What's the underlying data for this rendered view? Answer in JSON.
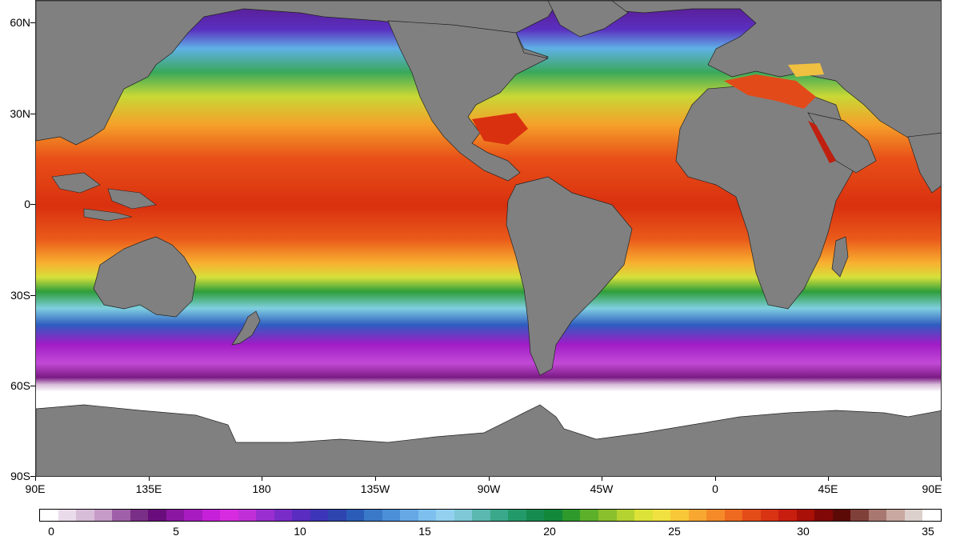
{
  "map": {
    "land_color": "#808080",
    "ice_color": "#ffffff",
    "lat_labels": [
      "60N",
      "30N",
      "0",
      "30S",
      "60S",
      "90S"
    ],
    "lon_labels": [
      "90E",
      "135E",
      "180",
      "135W",
      "90W",
      "45W",
      "0",
      "45E",
      "90E"
    ]
  },
  "colorbar": {
    "labels": [
      "0",
      "5",
      "10",
      "15",
      "20",
      "25",
      "30",
      "35"
    ],
    "colors": [
      "#ffffff",
      "#eadbea",
      "#d8bdd8",
      "#c79bc7",
      "#a060a8",
      "#7a2f86",
      "#6a0d7c",
      "#8a17a0",
      "#a81bc0",
      "#c521d8",
      "#d72be0",
      "#c030d8",
      "#9a2ed0",
      "#7a2cc8",
      "#5a2cc0",
      "#3d35b8",
      "#2e45b0",
      "#2a5cb8",
      "#3a78c8",
      "#4a8fd8",
      "#66a8e6",
      "#7dc0ee",
      "#93d0f0",
      "#7ec8d8",
      "#5ab8b0",
      "#3aa88a",
      "#239a6a",
      "#178c50",
      "#12883a",
      "#2e9a2c",
      "#5cb02a",
      "#8ac02c",
      "#b4d230",
      "#dce238",
      "#f0e040",
      "#f8c838",
      "#f8a830",
      "#f48a28",
      "#ee6a20",
      "#e44c18",
      "#d83414",
      "#c81e10",
      "#a81008",
      "#800806",
      "#5c0a06",
      "#80403a",
      "#a87870",
      "#c8a8a0",
      "#dcd0cc",
      "#ffffff"
    ]
  }
}
